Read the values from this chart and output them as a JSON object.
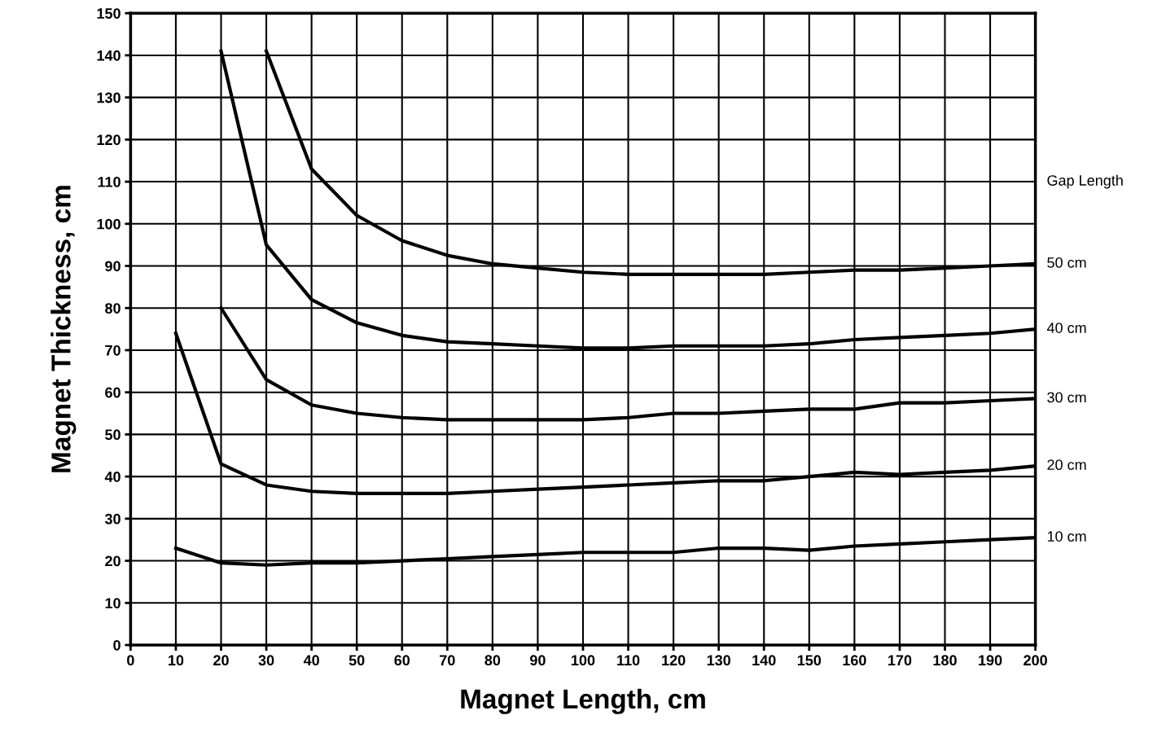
{
  "chart_data": {
    "type": "line",
    "xlabel": "Magnet Length, cm",
    "ylabel": "Magnet Thickness, cm",
    "xlim": [
      0,
      200
    ],
    "ylim": [
      0,
      150
    ],
    "xticks": [
      0,
      10,
      20,
      30,
      40,
      50,
      60,
      70,
      80,
      90,
      100,
      110,
      120,
      130,
      140,
      150,
      160,
      170,
      180,
      190,
      200
    ],
    "yticks": [
      0,
      10,
      20,
      30,
      40,
      50,
      60,
      70,
      80,
      90,
      100,
      110,
      120,
      130,
      140,
      150
    ],
    "grid": true,
    "legend": false,
    "marker": "none",
    "line_style": "solid",
    "annotations": [
      "Gap Length"
    ],
    "series": [
      {
        "name": "50 cm",
        "color": "#000000",
        "x": [
          30,
          40,
          50,
          60,
          70,
          80,
          90,
          100,
          110,
          120,
          130,
          140,
          150,
          160,
          170,
          180,
          190,
          200
        ],
        "values": [
          141,
          113,
          102,
          96,
          92.5,
          90.5,
          89.5,
          88.5,
          88,
          88,
          88,
          88,
          88.5,
          89,
          89,
          89.5,
          90,
          90.5
        ]
      },
      {
        "name": "40 cm",
        "color": "#000000",
        "x": [
          20,
          30,
          40,
          50,
          60,
          70,
          80,
          90,
          100,
          110,
          120,
          130,
          140,
          150,
          160,
          170,
          180,
          190,
          200
        ],
        "values": [
          141,
          95,
          82,
          76.5,
          73.5,
          72,
          71.5,
          71,
          70.5,
          70.5,
          71,
          71,
          71,
          71.5,
          72.5,
          73,
          73.5,
          74,
          75
        ]
      },
      {
        "name": "30 cm",
        "color": "#000000",
        "x": [
          20,
          30,
          40,
          50,
          60,
          70,
          80,
          90,
          100,
          110,
          120,
          130,
          140,
          150,
          160,
          170,
          180,
          190,
          200
        ],
        "values": [
          80,
          63,
          57,
          55,
          54,
          53.5,
          53.5,
          53.5,
          53.5,
          54,
          55,
          55,
          55.5,
          56,
          56,
          57.5,
          57.5,
          58,
          58.5
        ]
      },
      {
        "name": "20 cm",
        "color": "#000000",
        "x": [
          10,
          20,
          30,
          40,
          50,
          60,
          70,
          80,
          90,
          100,
          110,
          120,
          130,
          140,
          150,
          160,
          170,
          180,
          190,
          200
        ],
        "values": [
          74,
          43,
          38,
          36.5,
          36,
          36,
          36,
          36.5,
          37,
          37.5,
          38,
          38.5,
          39,
          39,
          40,
          41,
          40.5,
          41,
          41.5,
          42.5
        ]
      },
      {
        "name": "10 cm",
        "color": "#000000",
        "x": [
          10,
          20,
          30,
          40,
          50,
          60,
          70,
          80,
          90,
          100,
          110,
          120,
          130,
          140,
          150,
          160,
          170,
          180,
          190,
          200
        ],
        "values": [
          23,
          19.5,
          19,
          19.5,
          19.5,
          20,
          20.5,
          21,
          21.5,
          22,
          22,
          22,
          23,
          23,
          22.5,
          23.5,
          24,
          24.5,
          25,
          25.5
        ]
      }
    ]
  }
}
